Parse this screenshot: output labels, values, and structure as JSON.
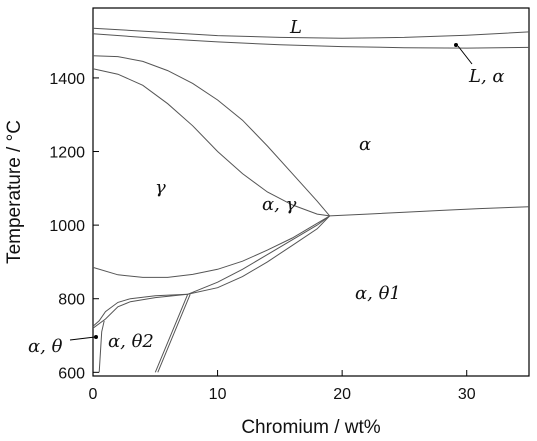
{
  "chart_data": {
    "type": "line",
    "title": "",
    "xlabel": "Chromium / wt%",
    "ylabel": "Temperature / °C",
    "xlim": [
      0,
      35
    ],
    "ylim": [
      590,
      1590
    ],
    "xticks": [
      0,
      10,
      20,
      30
    ],
    "yticks": [
      600,
      800,
      1000,
      1200,
      1400
    ],
    "xtick_labels": [
      "0",
      "10",
      "20",
      "30"
    ],
    "ytick_labels": [
      "600",
      "800",
      "1000",
      "1200",
      "1400"
    ],
    "grid": false,
    "legend": "none",
    "region_labels": {
      "liquid": "L",
      "liquid_alpha": "L, α",
      "alpha": "α",
      "gamma": "γ",
      "alpha_gamma": "α, γ",
      "alpha_theta1": "α, θ1",
      "alpha_theta2": "α, θ2",
      "alpha_theta": "α, θ"
    },
    "series": [
      {
        "x": [
          0,
          5,
          10,
          15,
          20,
          25,
          30,
          35
        ],
        "y": [
          1535,
          1525,
          1515,
          1510,
          1508,
          1510,
          1516,
          1525
        ]
      },
      {
        "x": [
          0,
          5,
          10,
          15,
          20,
          25,
          30,
          35
        ],
        "y": [
          1520,
          1508,
          1498,
          1490,
          1485,
          1482,
          1481,
          1483
        ]
      },
      {
        "x": [
          0,
          2,
          4,
          6,
          8,
          10,
          12,
          14,
          16,
          18,
          19
        ],
        "y": [
          1460,
          1458,
          1445,
          1420,
          1385,
          1340,
          1285,
          1215,
          1140,
          1065,
          1025
        ]
      },
      {
        "x": [
          0,
          2,
          4,
          6,
          8,
          10,
          12,
          14,
          16,
          18,
          19
        ],
        "y": [
          1425,
          1410,
          1380,
          1330,
          1270,
          1200,
          1140,
          1090,
          1055,
          1030,
          1025
        ]
      },
      {
        "x": [
          0,
          2,
          4,
          6,
          8,
          10,
          12,
          14,
          16,
          18,
          19
        ],
        "y": [
          885,
          865,
          858,
          858,
          866,
          880,
          902,
          932,
          965,
          1005,
          1025
        ]
      },
      {
        "x": [
          19,
          22,
          25,
          28,
          31,
          35
        ],
        "y": [
          1025,
          1030,
          1035,
          1040,
          1045,
          1050
        ]
      },
      {
        "x": [
          0,
          0.5,
          1,
          2,
          3,
          5,
          7.6,
          10,
          12,
          14,
          16,
          18,
          19
        ],
        "y": [
          725,
          740,
          765,
          790,
          800,
          808,
          812,
          830,
          860,
          900,
          945,
          990,
          1025
        ]
      },
      {
        "x": [
          7.6,
          10,
          12,
          14,
          16,
          18,
          19
        ],
        "y": [
          812,
          845,
          880,
          920,
          960,
          1000,
          1025
        ]
      },
      {
        "x": [
          0,
          1,
          2,
          3,
          5,
          7.6
        ],
        "y": [
          720,
          745,
          778,
          792,
          803,
          812
        ]
      },
      {
        "x": [
          7.6,
          5
        ],
        "y": [
          812,
          600
        ]
      },
      {
        "x": [
          7.8,
          5.2
        ],
        "y": [
          812,
          600
        ]
      },
      {
        "x": [
          0.5,
          0.7,
          0.9
        ],
        "y": [
          600,
          710,
          740
        ]
      }
    ]
  }
}
